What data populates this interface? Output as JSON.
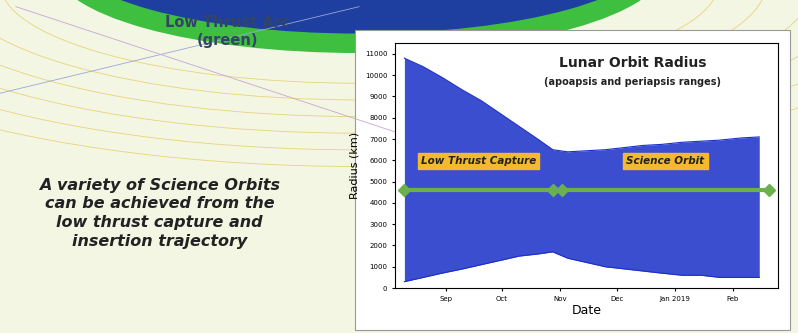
{
  "poster": {
    "callout": "Low Thrust Arc\n(green)",
    "caption": "A variety of Science Orbits\ncan be achieved from the\nlow thrust capture and\ninsertion trajectory"
  },
  "chart_data": {
    "type": "area",
    "title": "Lunar Orbit Radius",
    "subtitle": "(apoapsis and periapsis ranges)",
    "x_label": "Date",
    "y_label": "Radius (km)",
    "color": "#1a2fc8",
    "x": [
      "2018-08-10",
      "2018-08-20",
      "2018-08-30",
      "2018-09-10",
      "2018-09-20",
      "2018-09-30",
      "2018-10-10",
      "2018-10-20",
      "2018-10-28",
      "2018-11-05",
      "2018-11-15",
      "2018-11-25",
      "2018-12-05",
      "2018-12-15",
      "2018-12-25",
      "2019-01-05",
      "2019-01-15",
      "2019-01-25",
      "2019-02-05",
      "2019-02-15"
    ],
    "high": [
      10800,
      10400,
      9900,
      9300,
      8800,
      8200,
      7600,
      7000,
      6500,
      6400,
      6450,
      6500,
      6600,
      6700,
      6750,
      6850,
      6900,
      6950,
      7050,
      7100
    ],
    "low": [
      300,
      500,
      700,
      900,
      1100,
      1300,
      1500,
      1600,
      1700,
      1400,
      1200,
      1000,
      900,
      800,
      700,
      600,
      600,
      500,
      500,
      500
    ],
    "xlim": [
      "2018-08-05",
      "2019-02-25"
    ],
    "xticks": [
      {
        "value": "2018-09-01",
        "label": "Sep"
      },
      {
        "value": "2018-10-01",
        "label": "Oct"
      },
      {
        "value": "2018-11-01",
        "label": "Nov"
      },
      {
        "value": "2018-12-01",
        "label": "Dec"
      },
      {
        "value": "2019-01-01",
        "label": "Jan 2019"
      },
      {
        "value": "2019-02-01",
        "label": "Feb"
      }
    ],
    "ylim": [
      0,
      11500
    ],
    "yticks": [
      0,
      1000,
      2000,
      3000,
      4000,
      5000,
      6000,
      7000,
      8000,
      9000,
      10000,
      11000
    ],
    "phases": [
      {
        "label": "Low Thrust Capture",
        "start": "2018-08-10",
        "end": "2018-10-28"
      },
      {
        "label": "Science Orbit",
        "start": "2018-11-02",
        "end": "2019-02-20"
      }
    ],
    "phase_color": "#6ab04c",
    "label_color": "#f5b82e"
  }
}
